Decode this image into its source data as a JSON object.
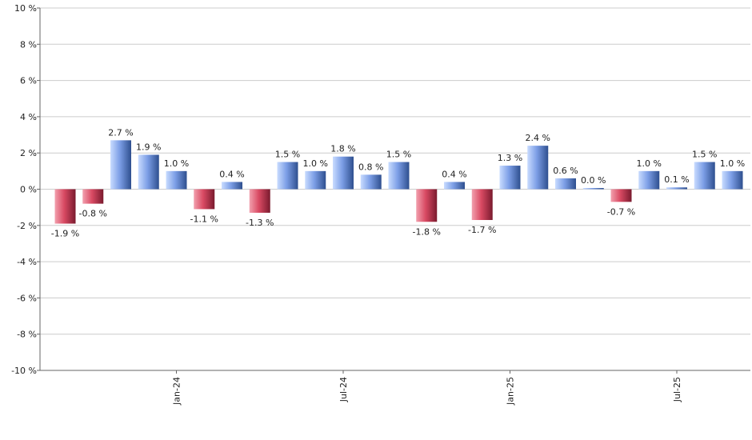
{
  "chart_data": {
    "type": "bar",
    "x": [
      "2023-09",
      "2023-10",
      "2023-11",
      "2023-12",
      "2024-01",
      "2024-02",
      "2024-03",
      "2024-04",
      "2024-05",
      "2024-06",
      "2024-07",
      "2024-08",
      "2024-09",
      "2024-10",
      "2024-11",
      "2024-12",
      "2025-01",
      "2025-02",
      "2025-03",
      "2025-04",
      "2025-05",
      "2025-06",
      "2025-07",
      "2025-08",
      "2025-09"
    ],
    "values": [
      -1.9,
      -0.8,
      2.7,
      1.9,
      1.0,
      -1.1,
      0.4,
      -1.3,
      1.5,
      1.0,
      1.8,
      0.8,
      1.5,
      -1.8,
      0.4,
      -1.7,
      1.3,
      2.4,
      0.6,
      0.0,
      -0.7,
      1.0,
      0.1,
      1.5,
      1.0
    ],
    "data_labels": [
      "-1.9 %",
      "-0.8 %",
      "2.7 %",
      "1.9 %",
      "1.0 %",
      "-1.1 %",
      "0.4 %",
      "-1.3 %",
      "1.5 %",
      "1.0 %",
      "1.8 %",
      "0.8 %",
      "1.5 %",
      "-1.8 %",
      "0.4 %",
      "-1.7 %",
      "1.3 %",
      "2.4 %",
      "0.6 %",
      "0.0 %",
      "-0.7 %",
      "1.0 %",
      "0.1 %",
      "1.5 %",
      "1.0 %"
    ],
    "ylim": [
      -10,
      10
    ],
    "y_ticks": [
      10,
      8,
      6,
      4,
      2,
      0,
      -2,
      -4,
      -6,
      -8,
      -10
    ],
    "y_tick_labels": [
      "10 %",
      "8 %",
      "6 %",
      "4 %",
      "2 %",
      "0 %",
      "-2 %",
      "-4 %",
      "-6 %",
      "-8 %",
      "-10 %"
    ],
    "x_tick_labels": [
      {
        "position": "2024-01",
        "label": "Jan-24"
      },
      {
        "position": "2024-07",
        "label": "Jul-24"
      },
      {
        "position": "2025-01",
        "label": "Jan-25"
      },
      {
        "position": "2025-07",
        "label": "Jul-25"
      }
    ],
    "grid": true,
    "title": "",
    "xlabel": "",
    "ylabel": "",
    "colors": {
      "positive_light": "#c9dcff",
      "positive_mid": "#7c9ee6",
      "positive_dark": "#2e4f8f",
      "negative_light": "#f2a0ae",
      "negative_mid": "#d94a63",
      "negative_dark": "#7a1a2e",
      "grid": "#cccccc",
      "axis": "#666666"
    }
  }
}
